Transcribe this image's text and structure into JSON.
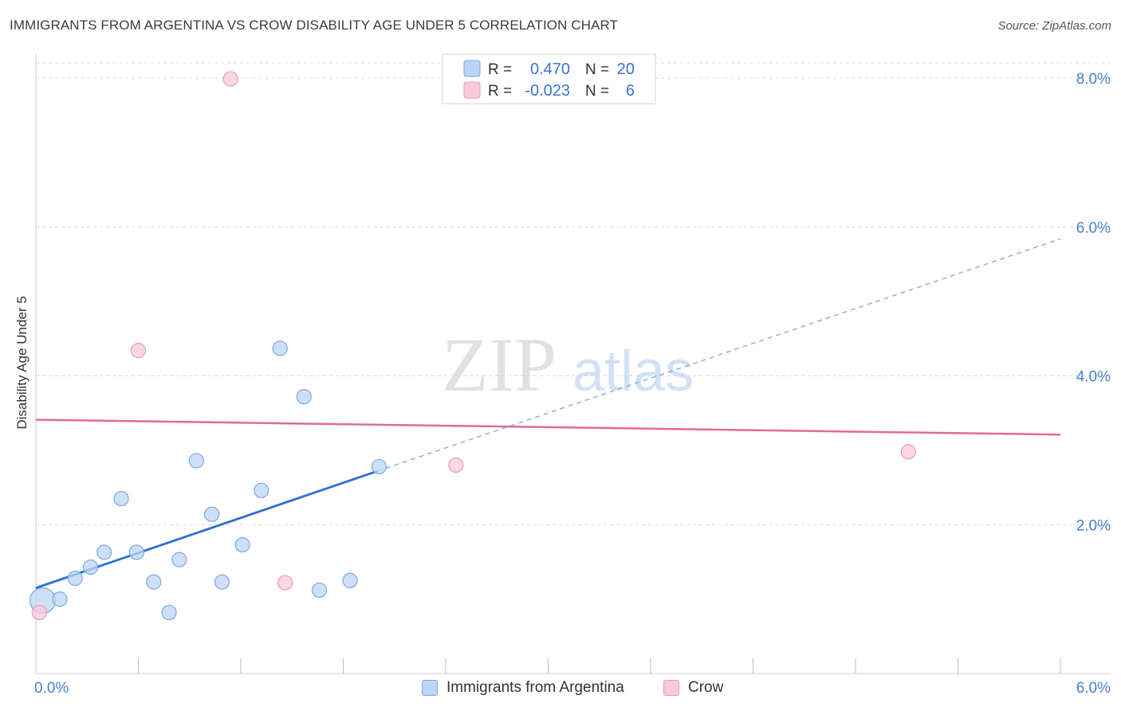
{
  "header": {
    "title": "IMMIGRANTS FROM ARGENTINA VS CROW DISABILITY AGE UNDER 5 CORRELATION CHART",
    "source": "Source: ZipAtlas.com"
  },
  "colors": {
    "blue_fill": "#bcd5f5",
    "blue_stroke": "#7aa6e3",
    "blue_line": "#2b6fd6",
    "pink_fill": "#f9cad8",
    "pink_stroke": "#eb9ab4",
    "pink_line": "#e36b93",
    "grid": "#d8d8d8",
    "tick_label": "#4a7fd0"
  },
  "chart_data": {
    "type": "scatter",
    "title": "IMMIGRANTS FROM ARGENTINA VS CROW DISABILITY AGE UNDER 5 CORRELATION CHART",
    "xlabel": "",
    "ylabel": "Disability Age Under 5",
    "xlim": [
      0,
      6
    ],
    "ylim": [
      0,
      8.3
    ],
    "x_tick_labels": [
      "0.0%",
      "6.0%"
    ],
    "y_ticks": [
      2,
      4,
      6,
      8
    ],
    "y_tick_labels": [
      "2.0%",
      "4.0%",
      "6.0%",
      "8.0%"
    ],
    "grid": true,
    "watermark": "ZIPatlas",
    "series": [
      {
        "name": "Immigrants from Argentina",
        "color": "#bcd5f5",
        "R": "0.470",
        "N": "20",
        "points": [
          {
            "x": 0.04,
            "y": 0.98,
            "size": "large"
          },
          {
            "x": 0.14,
            "y": 1.0
          },
          {
            "x": 0.23,
            "y": 1.28
          },
          {
            "x": 0.32,
            "y": 1.43
          },
          {
            "x": 0.4,
            "y": 1.63
          },
          {
            "x": 0.5,
            "y": 2.35
          },
          {
            "x": 0.59,
            "y": 1.63
          },
          {
            "x": 0.69,
            "y": 1.23
          },
          {
            "x": 0.78,
            "y": 0.82
          },
          {
            "x": 0.84,
            "y": 1.53
          },
          {
            "x": 0.94,
            "y": 2.86
          },
          {
            "x": 1.03,
            "y": 2.14
          },
          {
            "x": 1.09,
            "y": 1.23
          },
          {
            "x": 1.21,
            "y": 1.73
          },
          {
            "x": 1.32,
            "y": 2.46
          },
          {
            "x": 1.43,
            "y": 4.37
          },
          {
            "x": 1.57,
            "y": 3.72
          },
          {
            "x": 1.66,
            "y": 1.12
          },
          {
            "x": 1.84,
            "y": 1.25
          },
          {
            "x": 2.01,
            "y": 2.78
          }
        ],
        "trend": {
          "x0": 0.0,
          "y0": 1.15,
          "x1": 2.0,
          "y1": 2.72,
          "dashed_to_x": 6.0,
          "dashed_to_y": 5.84
        }
      },
      {
        "name": "Crow",
        "color": "#f9cad8",
        "R": "-0.023",
        "N": "6",
        "points": [
          {
            "x": 0.02,
            "y": 0.82
          },
          {
            "x": 0.6,
            "y": 4.34
          },
          {
            "x": 1.14,
            "y": 7.99
          },
          {
            "x": 1.46,
            "y": 1.22
          },
          {
            "x": 2.46,
            "y": 2.8
          },
          {
            "x": 5.11,
            "y": 2.98
          }
        ],
        "trend": {
          "x0": 0.0,
          "y0": 3.41,
          "x1": 6.0,
          "y1": 3.21
        }
      }
    ],
    "legend": {
      "r_label": "R =",
      "n_label": "N =",
      "placement": "top-center"
    }
  }
}
